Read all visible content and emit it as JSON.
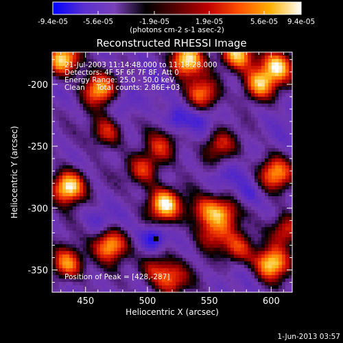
{
  "chart_data": {
    "type": "heatmap",
    "title": "Reconstructed RHESSI Image",
    "xlabel": "Heliocentric X (arcsec)",
    "ylabel": "Heliocentric Y (arcsec)",
    "xlim": [
      423,
      617
    ],
    "ylim": [
      -368,
      -174
    ],
    "x_ticks": [
      "450",
      "500",
      "550",
      "600"
    ],
    "x_tick_values": [
      450,
      500,
      550,
      600
    ],
    "y_ticks": [
      "-200",
      "-250",
      "-300",
      "-350"
    ],
    "y_tick_values": [
      -200,
      -250,
      -300,
      -350
    ],
    "colorbar": {
      "ticks": [
        "-9.4e-05",
        "-5.6e-05",
        "-1.9e-05",
        "1.9e-05",
        "5.6e-05",
        "9.4e-05"
      ],
      "min": -9.4e-05,
      "max": 9.4e-05,
      "unit_label": "(photons cm-2 s-1 asec-2)",
      "colors": [
        "#0000ff",
        "#5a30d0",
        "#7a40b8",
        "#000000",
        "#5a0000",
        "#c00000",
        "#ff5000",
        "#ffb000",
        "#ffffff"
      ]
    },
    "annotations": {
      "time": "21-Jul-2003 11:14:48.000 to 11:18:28.000",
      "detectors": "Detectors: 4F 5F 6F 7F 8F, Att 0",
      "energy": "Energy Range: 25.0 - 50.0 keV",
      "method": "Clean     Total counts: 2.86E+03",
      "peak": "Position of Peak = [428,-287]"
    },
    "peak_position": [
      428,
      -287
    ],
    "bright_sources": [
      {
        "x": 436,
        "y": -283,
        "amp": 1.0
      },
      {
        "x": 432,
        "y": -180,
        "amp": 0.9
      },
      {
        "x": 460,
        "y": -205,
        "amp": 0.75
      },
      {
        "x": 435,
        "y": -345,
        "amp": 0.75
      },
      {
        "x": 470,
        "y": -330,
        "amp": 0.8
      },
      {
        "x": 467,
        "y": -238,
        "amp": 0.55
      },
      {
        "x": 497,
        "y": -269,
        "amp": 0.55
      },
      {
        "x": 514,
        "y": -297,
        "amp": 0.9
      },
      {
        "x": 512,
        "y": -250,
        "amp": 0.45
      },
      {
        "x": 532,
        "y": -180,
        "amp": 0.9
      },
      {
        "x": 545,
        "y": -208,
        "amp": 0.6
      },
      {
        "x": 558,
        "y": -250,
        "amp": 0.5
      },
      {
        "x": 545,
        "y": -303,
        "amp": 0.5
      },
      {
        "x": 562,
        "y": -303,
        "amp": 0.55
      },
      {
        "x": 552,
        "y": -322,
        "amp": 0.5
      },
      {
        "x": 573,
        "y": -176,
        "amp": 0.8
      },
      {
        "x": 590,
        "y": -200,
        "amp": 0.75
      },
      {
        "x": 605,
        "y": -185,
        "amp": 0.75
      },
      {
        "x": 603,
        "y": -272,
        "amp": 0.7
      },
      {
        "x": 600,
        "y": -345,
        "amp": 0.85
      },
      {
        "x": 612,
        "y": -318,
        "amp": 0.6
      },
      {
        "x": 573,
        "y": -333,
        "amp": 0.5
      },
      {
        "x": 506,
        "y": -349,
        "amp": 0.45
      },
      {
        "x": 520,
        "y": -358,
        "amp": 0.55
      }
    ],
    "negative_regions": [
      {
        "x": 505,
        "y": -324,
        "amp": 0.9
      },
      {
        "x": 523,
        "y": -228,
        "amp": 0.6
      },
      {
        "x": 480,
        "y": -215,
        "amp": 0.35
      },
      {
        "x": 545,
        "y": -227,
        "amp": 0.35
      },
      {
        "x": 580,
        "y": -290,
        "amp": 0.35
      },
      {
        "x": 462,
        "y": -310,
        "amp": 0.3
      },
      {
        "x": 560,
        "y": -275,
        "amp": 0.35
      }
    ]
  },
  "footer": {
    "date": "1-Jun-2013 03:57"
  }
}
